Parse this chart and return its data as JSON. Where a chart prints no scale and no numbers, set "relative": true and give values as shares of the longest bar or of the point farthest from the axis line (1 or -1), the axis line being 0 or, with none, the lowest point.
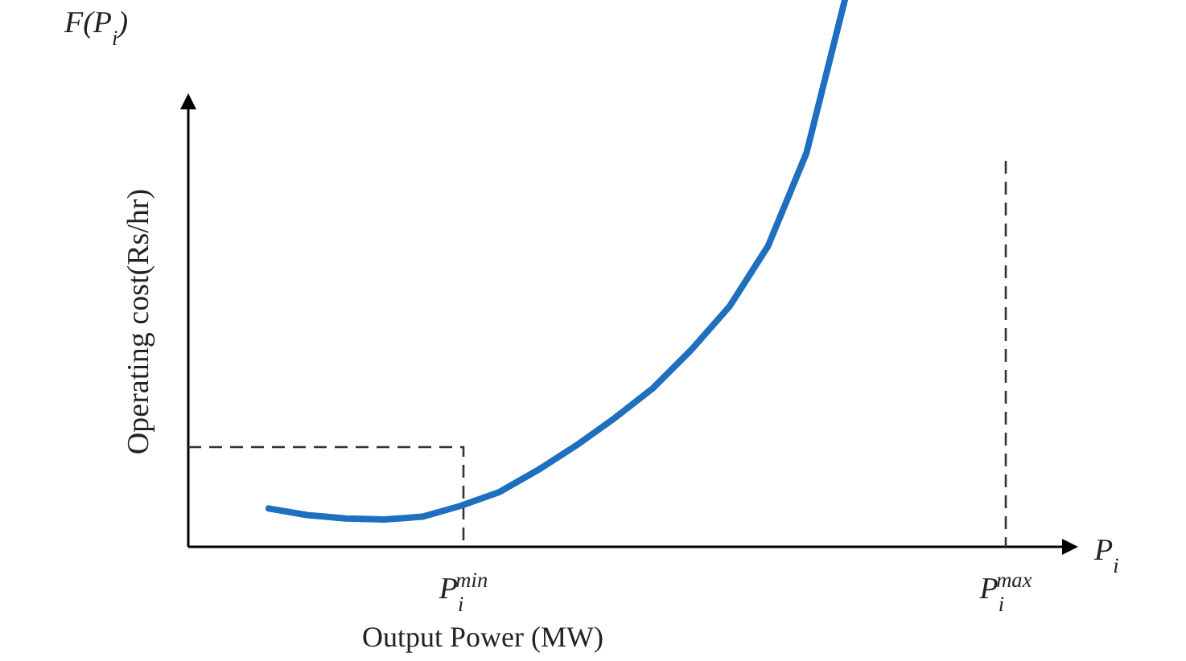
{
  "chart_data": {
    "type": "line",
    "relative": true,
    "ylabel": "Operating cost(Rs/hr)",
    "xlabel": "Output Power (MW)",
    "categories": [
      null,
      null,
      null,
      null,
      null,
      null,
      null,
      null,
      null,
      null,
      null,
      null,
      null,
      null,
      null,
      null
    ],
    "series": [
      {
        "color": "#1f6fbf",
        "values": [
          0.07,
          0.058,
          0.052,
          0.05,
          0.055,
          0.075,
          0.1,
          0.14,
          0.185,
          0.235,
          0.29,
          0.36,
          0.44,
          0.55,
          0.72,
          1
        ]
      }
    ],
    "annotations": [
      "F(P$_{i}$)",
      "P$_{i}$",
      "P$_{i}$$^{min}$",
      "P$_{i}$$^{max}$"
    ]
  }
}
